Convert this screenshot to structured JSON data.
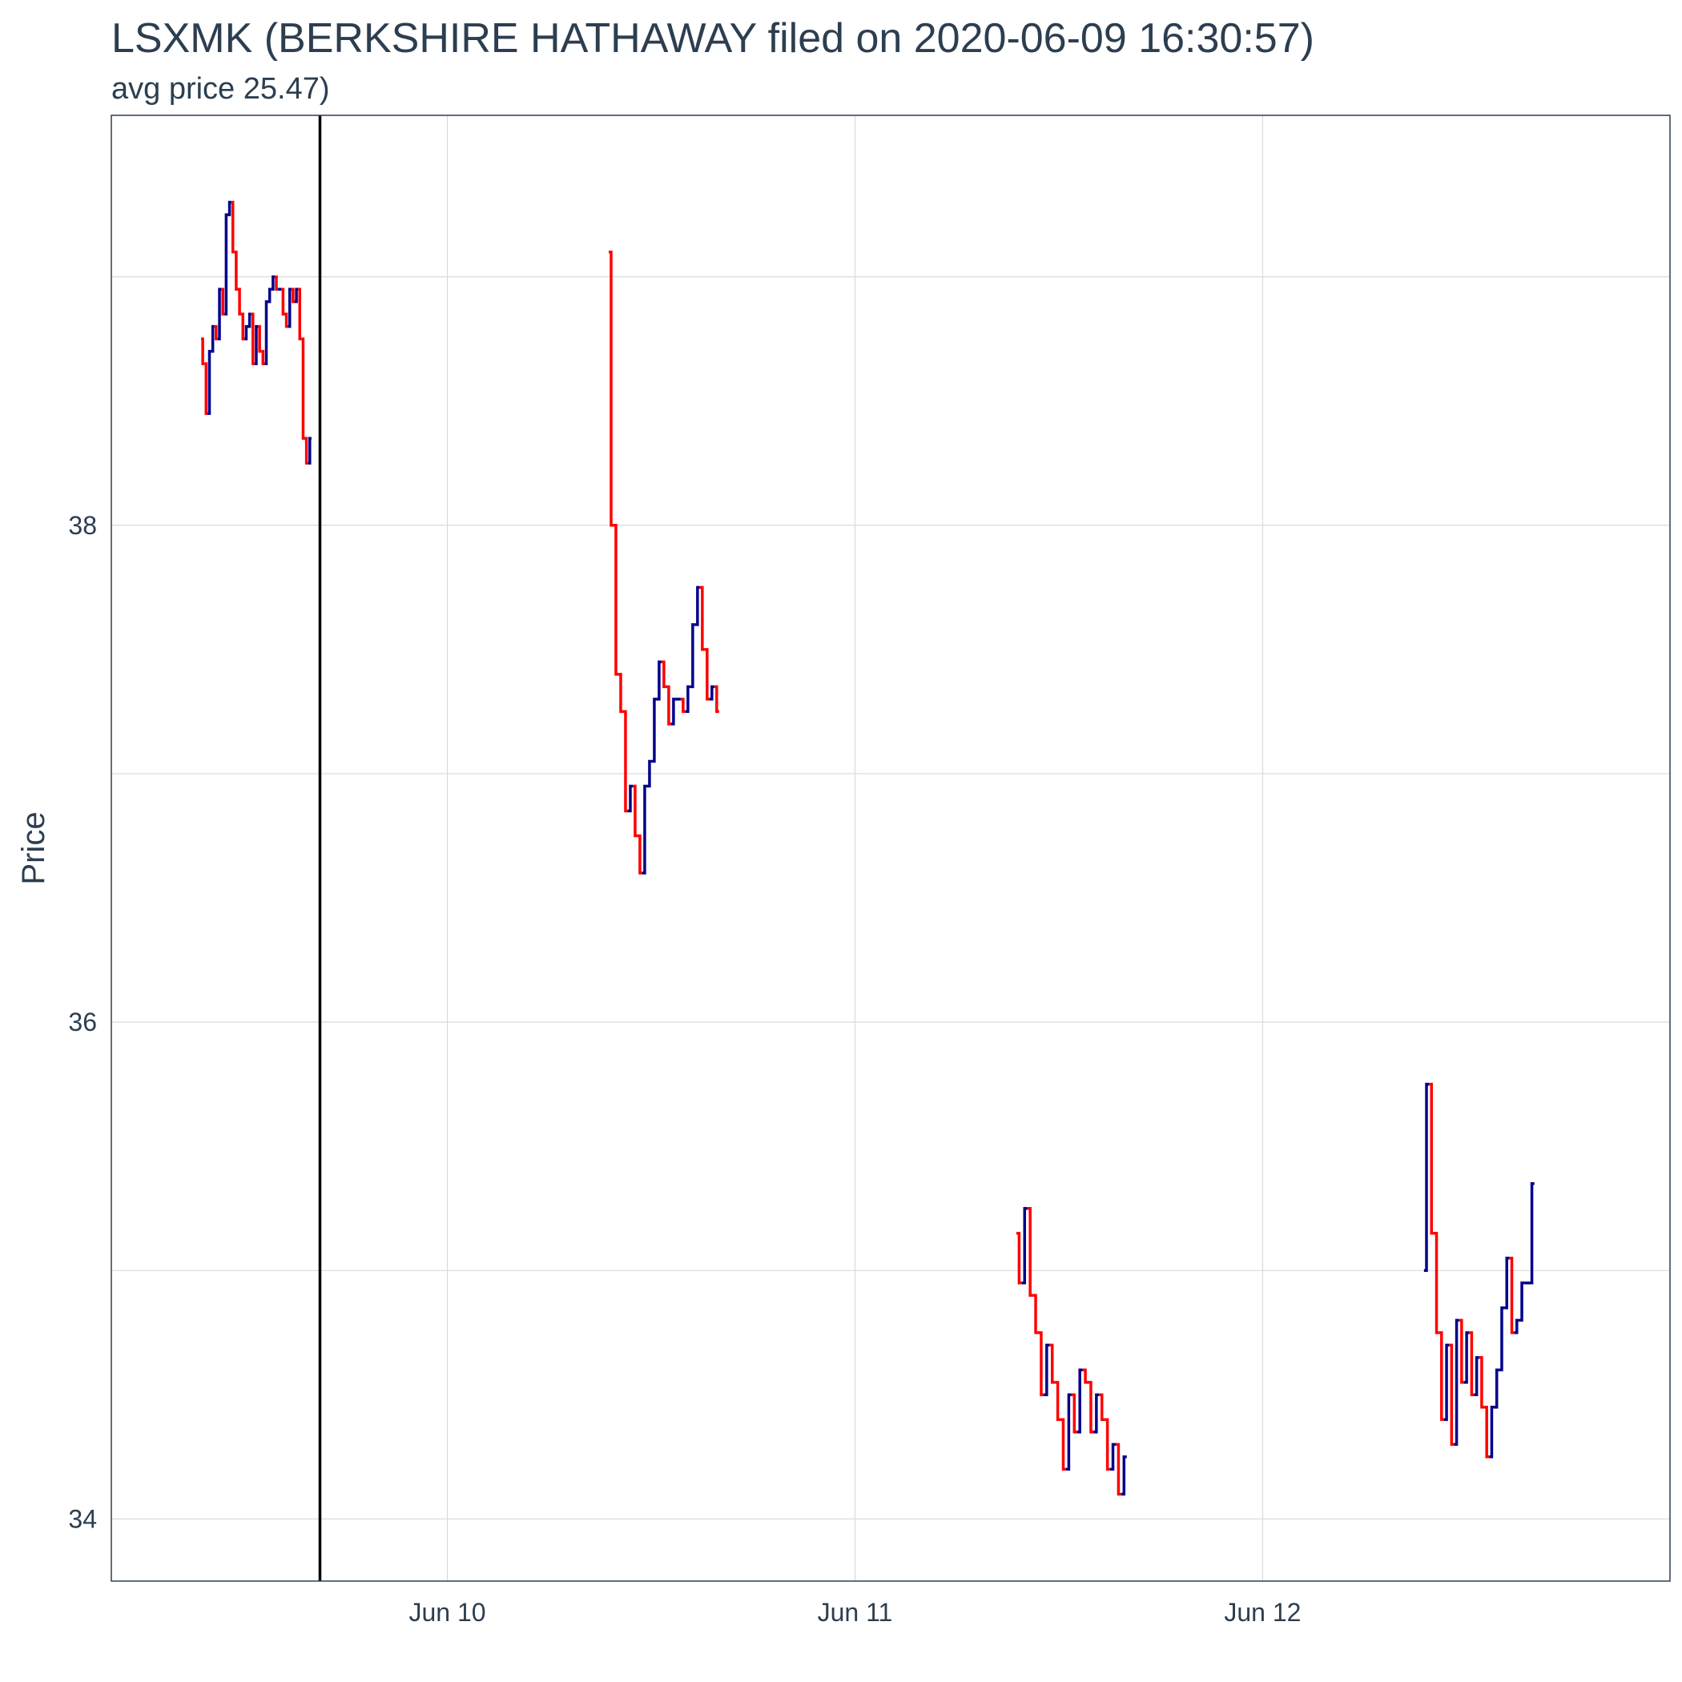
{
  "chart_data": {
    "type": "line",
    "title": "LSXMK (BERKSHIRE HATHAWAY filed on 2020-06-09 16:30:57)",
    "subtitle": "avg price 25.47)",
    "ylabel": "Price",
    "xlabel": "",
    "xlim": [
      "2020-06-09 04:13",
      "2020-06-12 23:59"
    ],
    "ylim": [
      33.75,
      39.65
    ],
    "x_ticks": [
      {
        "label": "Jun 10",
        "value": "2020-06-10 00:00"
      },
      {
        "label": "Jun 11",
        "value": "2020-06-11 00:00"
      },
      {
        "label": "Jun 12",
        "value": "2020-06-12 00:00"
      }
    ],
    "y_ticks": [
      34,
      36,
      38
    ],
    "y_minor_gridlines": [
      35,
      37,
      39
    ],
    "grid": true,
    "filing_time": "2020-06-09 16:30",
    "colors": {
      "up": "#00008b",
      "down": "#ff0000",
      "filing_line": "#000000",
      "grid": "#d9d9d9",
      "text": "#2c3e50"
    },
    "sessions": [
      {
        "date": "2020-06-09",
        "start": "2020-06-09 09:30",
        "end": "2020-06-09 16:00",
        "prices": [
          38.75,
          38.65,
          38.45,
          38.7,
          38.8,
          38.75,
          38.95,
          38.85,
          39.25,
          39.3,
          39.1,
          38.95,
          38.85,
          38.75,
          38.8,
          38.85,
          38.65,
          38.8,
          38.7,
          38.65,
          38.9,
          38.95,
          39.0,
          38.95,
          38.95,
          38.85,
          38.8,
          38.95,
          38.9,
          38.95,
          38.75,
          38.35,
          38.25,
          38.35
        ]
      },
      {
        "date": "2020-06-10",
        "start": "2020-06-10 09:30",
        "end": "2020-06-10 16:00",
        "prices": [
          39.1,
          38.0,
          37.4,
          37.25,
          36.85,
          36.95,
          36.75,
          36.6,
          36.95,
          37.05,
          37.3,
          37.45,
          37.35,
          37.2,
          37.3,
          37.3,
          37.25,
          37.35,
          37.6,
          37.75,
          37.5,
          37.3,
          37.35,
          37.25
        ]
      },
      {
        "date": "2020-06-11",
        "start": "2020-06-11 09:30",
        "end": "2020-06-11 16:00",
        "prices": [
          35.15,
          34.95,
          35.25,
          34.9,
          34.75,
          34.5,
          34.7,
          34.55,
          34.4,
          34.2,
          34.5,
          34.35,
          34.6,
          34.55,
          34.35,
          34.5,
          34.4,
          34.2,
          34.3,
          34.1,
          34.25
        ]
      },
      {
        "date": "2020-06-12",
        "start": "2020-06-12 09:30",
        "end": "2020-06-12 16:00",
        "prices": [
          35.0,
          35.75,
          35.15,
          34.75,
          34.4,
          34.7,
          34.3,
          34.8,
          34.55,
          34.75,
          34.5,
          34.65,
          34.45,
          34.25,
          34.45,
          34.6,
          34.85,
          35.05,
          34.75,
          34.8,
          34.95,
          34.95,
          35.35
        ]
      }
    ]
  }
}
